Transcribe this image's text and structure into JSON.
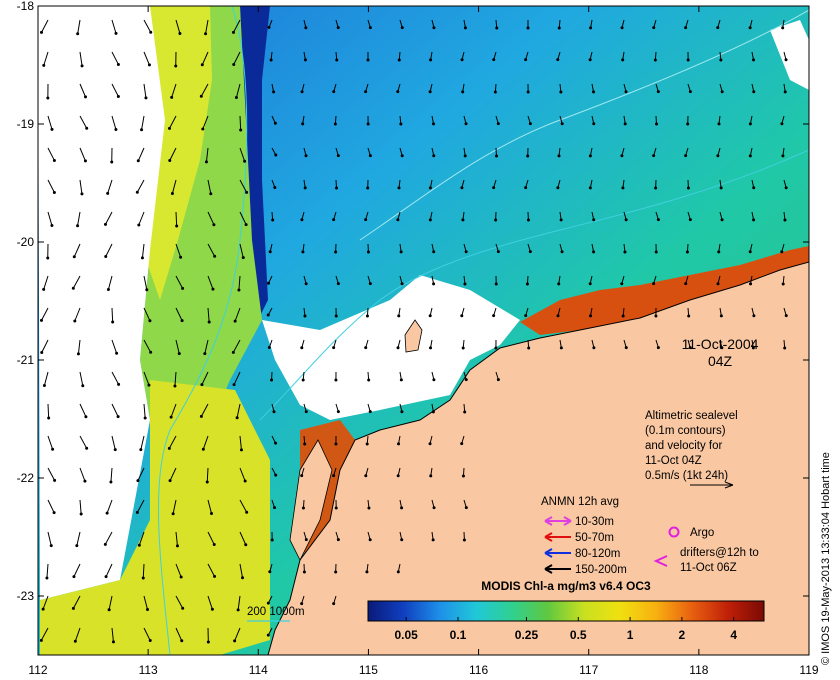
{
  "map": {
    "date": "11-Oct-2004",
    "time": "04Z",
    "credit": "© IMOS 19-May-2013 13:33:04 Hobart time",
    "lon_ticks": [
      "112",
      "113",
      "114",
      "115",
      "116",
      "117",
      "118",
      "119"
    ],
    "lat_ticks": [
      "-18",
      "-19",
      "-20",
      "-21",
      "-22",
      "-23"
    ],
    "lon_range": [
      112,
      119
    ],
    "lat_range": [
      -23.5,
      -18
    ],
    "colors": {
      "land": "#f9c8a2",
      "cloud_nodata": "#ffffff",
      "contour": "#40d0e0",
      "mooring_10_30": "#e040e0",
      "mooring_50_70": "#e01010",
      "mooring_80_120": "#1030e0",
      "mooring_150_200": "#000000",
      "argo": "#e020e0",
      "drifter": "#e020e0"
    }
  },
  "altimetry_note": {
    "lines": [
      "Altimetric sealevel",
      "(0.1m contours)",
      "and velocity for",
      "11-Oct 04Z",
      "0.5m/s (1kt 24h)"
    ]
  },
  "anmn_legend": {
    "title": "ANMN 12h avg",
    "items": [
      {
        "label": "10-30m",
        "color": "#e040e0"
      },
      {
        "label": "50-70m",
        "color": "#e01010"
      },
      {
        "label": "80-120m",
        "color": "#1030e0"
      },
      {
        "label": "150-200m",
        "color": "#000000"
      }
    ]
  },
  "argo_legend": {
    "label": "Argo"
  },
  "drifter_legend": {
    "lines": [
      "drifters@12h to",
      "11-Oct 06Z"
    ]
  },
  "depth_legend": {
    "label": "200  1000m"
  },
  "colorbar": {
    "title": "MODIS Chl-a mg/m3 v6.4 OC3",
    "ticks": [
      "0.05",
      "0.1",
      "0.25",
      "0.5",
      "1",
      "2",
      "4"
    ],
    "tick_values": [
      0.05,
      0.1,
      0.25,
      0.5,
      1,
      2,
      4
    ],
    "range": [
      0.03,
      6
    ],
    "stops": [
      "#0a1a7a",
      "#1040c0",
      "#1e90e8",
      "#20c8d8",
      "#30d090",
      "#60c840",
      "#c8e020",
      "#f0e010",
      "#f8b010",
      "#e86010",
      "#c02008",
      "#7a0a04"
    ]
  }
}
